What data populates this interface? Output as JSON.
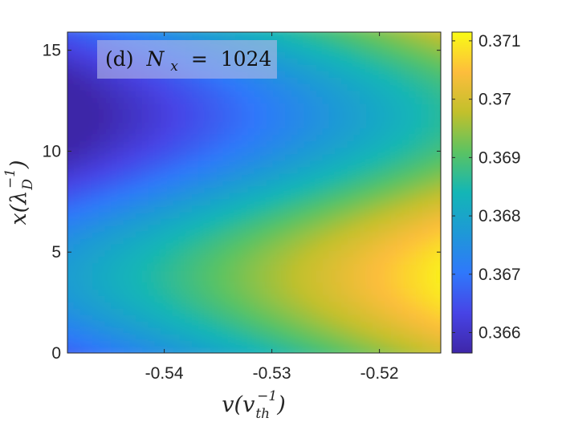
{
  "chart_data": {
    "type": "heatmap",
    "annotation": {
      "panel": "(d)",
      "symbol": "N",
      "subscript": "x",
      "equals": "=",
      "value": "1024",
      "background": "#b3b8e8"
    },
    "xlabel": {
      "main": "v",
      "open": "(",
      "inner": "v",
      "sub": "th",
      "sup": "−1",
      "close": ")"
    },
    "ylabel": {
      "main": "x",
      "open": "(",
      "inner": "λ",
      "sub": "D",
      "sup": "−1",
      "close": ")"
    },
    "xlim": [
      -0.549,
      -0.5143
    ],
    "ylim": [
      0,
      15.9
    ],
    "xticks": [
      {
        "value": -0.54,
        "label": "-0.54"
      },
      {
        "value": -0.53,
        "label": "-0.53"
      },
      {
        "value": -0.52,
        "label": "-0.52"
      }
    ],
    "yticks": [
      {
        "value": 0,
        "label": "0"
      },
      {
        "value": 5,
        "label": "5"
      },
      {
        "value": 10,
        "label": "10"
      },
      {
        "value": 15,
        "label": "15"
      }
    ],
    "colorbar": {
      "colormap": "parula",
      "clim": [
        0.36565,
        0.37115
      ],
      "ticks": [
        {
          "value": 0.366,
          "label": "0.366"
        },
        {
          "value": 0.367,
          "label": "0.367"
        },
        {
          "value": 0.368,
          "label": "0.368"
        },
        {
          "value": 0.369,
          "label": "0.369"
        },
        {
          "value": 0.37,
          "label": "0.37"
        },
        {
          "value": 0.371,
          "label": "0.371"
        }
      ],
      "placement": "right"
    },
    "field": {
      "description": "f(v,x) increasing with v, modulated by a single wave in x (peak near x≈3.8, trough near x≈11.8)",
      "base_at_xmin": 0.3666,
      "slope_per_unit_v": 0.0925,
      "modulation_amplitude": 0.0012,
      "modulation_phase_x": 3.8
    },
    "grid": false,
    "colors": {
      "axis": "#262626",
      "annotation_box": "#b3b8e8"
    }
  }
}
